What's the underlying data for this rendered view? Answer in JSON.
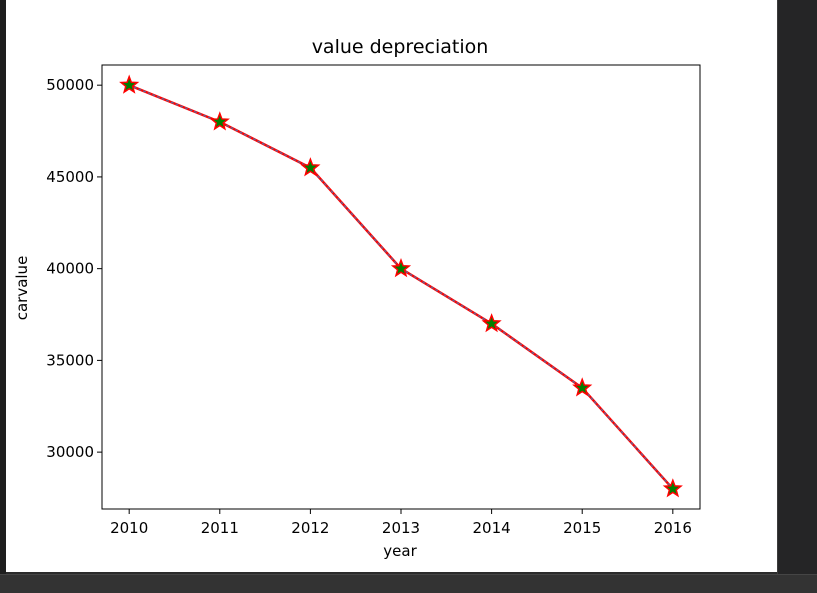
{
  "chart_data": {
    "type": "line",
    "title": "value depreciation",
    "xlabel": "year",
    "ylabel": "carvalue",
    "x": [
      2010,
      2011,
      2012,
      2013,
      2014,
      2015,
      2016
    ],
    "xticks": [
      "2010",
      "2011",
      "2012",
      "2013",
      "2014",
      "2015",
      "2016"
    ],
    "yticks": [
      30000,
      35000,
      40000,
      45000,
      50000
    ],
    "ytick_labels": [
      "30000",
      "35000",
      "40000",
      "45000",
      "50000"
    ],
    "xlim": [
      2009.7,
      2016.3
    ],
    "ylim": [
      26900,
      51100
    ],
    "series": [
      {
        "values": [
          50000,
          48000,
          45500,
          40000,
          37000,
          33500,
          28000
        ],
        "line_color": "#ff0000",
        "dash_color": "#4f6fa6",
        "marker": "star",
        "marker_face": "#008000",
        "marker_edge": "#ff0000"
      }
    ],
    "grid": false,
    "legend": "none"
  }
}
